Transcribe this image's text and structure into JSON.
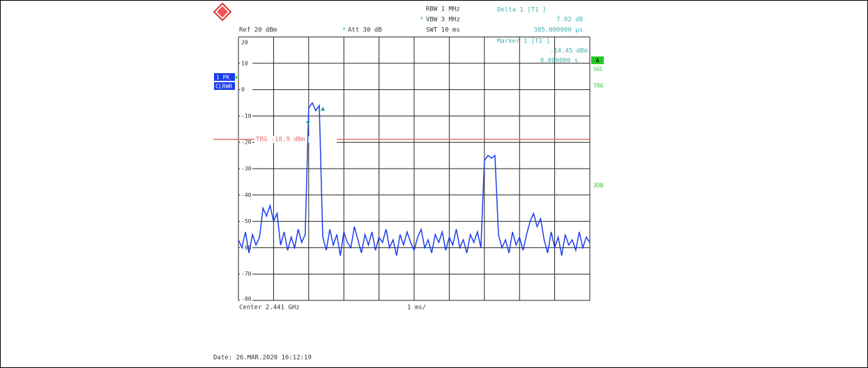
{
  "chart_data": {
    "type": "line",
    "annotations": {
      "rbw": "RBW 1 MHz",
      "vbw": "VBW 3 MHz",
      "swt": "SWT 10 ms",
      "ref": "Ref 20 dBm",
      "att": "Att 30 dB",
      "delta_title": "Delta 1 [T1 ]",
      "delta_level": "7.02 dB",
      "delta_time": "385.000000 µs",
      "marker_title": "Marker 1 [T1 ]",
      "marker_level": "-14.45 dBm",
      "marker_time": "0.000000 s",
      "trace_mode": "1 PK",
      "trace_clear": "CLRWR",
      "status_a": "A",
      "status_sgl": "SGL",
      "status_trg": "TRG",
      "status_3db": "3DB",
      "center": "Center 2.441 GHz",
      "span": "1 ms/",
      "date": "Date: 26.MAR.2020  16:12:19"
    },
    "trigger": {
      "value": -18.9,
      "label": "TRG -18.9 dBm",
      "color": "#e07070"
    },
    "xlim": [
      0,
      10
    ],
    "ylim": [
      -80,
      20
    ],
    "yticks": [
      20,
      10,
      0,
      -10,
      -20,
      -30,
      -40,
      -50,
      -60,
      -70,
      -80
    ],
    "grid": true,
    "x": [
      0,
      0.1,
      0.2,
      0.3,
      0.4,
      0.5,
      0.6,
      0.7,
      0.8,
      0.9,
      1,
      1.1,
      1.2,
      1.3,
      1.4,
      1.5,
      1.6,
      1.7,
      1.8,
      1.9,
      2,
      2.1,
      2.2,
      2.3,
      2.4,
      2.5,
      2.6,
      2.7,
      2.8,
      2.9,
      3,
      3.1,
      3.2,
      3.3,
      3.4,
      3.5,
      3.6,
      3.7,
      3.8,
      3.9,
      4,
      4.1,
      4.2,
      4.3,
      4.4,
      4.5,
      4.6,
      4.7,
      4.8,
      4.9,
      5,
      5.1,
      5.2,
      5.3,
      5.4,
      5.5,
      5.6,
      5.7,
      5.8,
      5.9,
      6,
      6.1,
      6.2,
      6.3,
      6.4,
      6.5,
      6.6,
      6.7,
      6.8,
      6.9,
      7,
      7.1,
      7.2,
      7.3,
      7.4,
      7.5,
      7.6,
      7.7,
      7.8,
      7.9,
      8,
      8.1,
      8.2,
      8.3,
      8.4,
      8.5,
      8.6,
      8.7,
      8.8,
      8.9,
      9,
      9.1,
      9.2,
      9.3,
      9.4,
      9.5,
      9.6,
      9.7,
      9.8,
      9.9,
      10
    ],
    "series": [
      {
        "color": "#1a3cf0",
        "values": [
          -57,
          -60,
          -54,
          -62,
          -55,
          -59,
          -56,
          -45,
          -48,
          -44,
          -50,
          -47,
          -59,
          -54,
          -61,
          -56,
          -60,
          -53,
          -58,
          -55,
          -7,
          -5,
          -8,
          -6,
          -56,
          -61,
          -53,
          -59,
          -55,
          -63,
          -54,
          -58,
          -60,
          -52,
          -57,
          -62,
          -55,
          -59,
          -54,
          -61,
          -56,
          -58,
          -53,
          -60,
          -57,
          -63,
          -55,
          -59,
          -54,
          -58,
          -61,
          -56,
          -53,
          -60,
          -57,
          -62,
          -55,
          -58,
          -54,
          -61,
          -56,
          -59,
          -53,
          -60,
          -57,
          -62,
          -55,
          -58,
          -54,
          -60,
          -27,
          -25,
          -26,
          -25,
          -55,
          -60,
          -57,
          -62,
          -54,
          -59,
          -56,
          -61,
          -55,
          -50,
          -47,
          -52,
          -49,
          -57,
          -62,
          -54,
          -60,
          -56,
          -63,
          -55,
          -59,
          -57,
          -61,
          -54,
          -60,
          -56,
          -58
        ]
      }
    ]
  }
}
